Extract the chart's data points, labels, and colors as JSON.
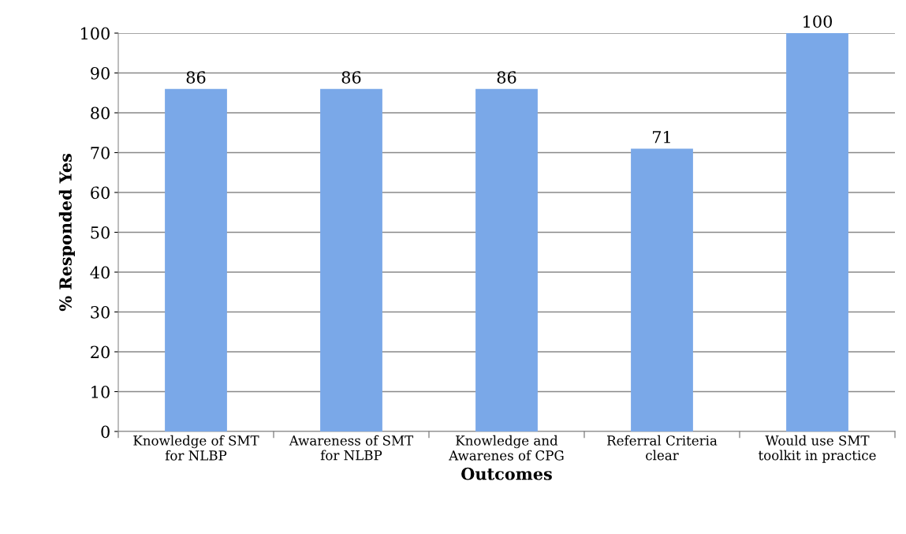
{
  "chart_data": {
    "type": "bar",
    "xlabel": "Outcomes",
    "ylabel": "% Responded Yes",
    "categories": [
      "Knowledge of SMT\nfor NLBP",
      "Awareness of SMT\nfor NLBP",
      "Knowledge and\nAwarenes of CPG",
      "Referral Criteria\nclear",
      "Would use SMT\ntoolkit in practice"
    ],
    "values": [
      86,
      86,
      86,
      71,
      100
    ],
    "color": "#7aa8e8",
    "ylim": [
      0,
      100
    ],
    "yticks": [
      0,
      10,
      20,
      30,
      40,
      50,
      60,
      70,
      80,
      90,
      100
    ],
    "grid": "y",
    "data_labels": true,
    "legend": false
  }
}
